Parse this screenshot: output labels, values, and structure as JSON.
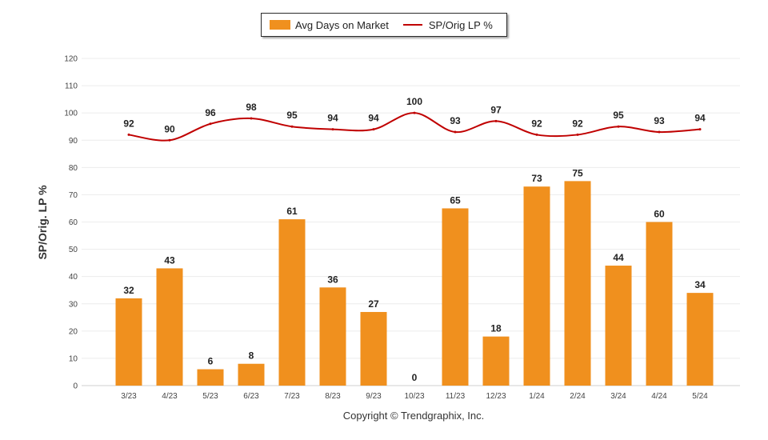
{
  "chart_data": {
    "type": "bar",
    "categories": [
      "3/23",
      "4/23",
      "5/23",
      "6/23",
      "7/23",
      "8/23",
      "9/23",
      "10/23",
      "11/23",
      "12/23",
      "1/24",
      "2/24",
      "3/24",
      "4/24",
      "5/24"
    ],
    "series": [
      {
        "name": "Avg Days on Market",
        "type": "bar",
        "color": "#F0901E",
        "values": [
          32,
          43,
          6,
          8,
          61,
          36,
          27,
          0,
          65,
          18,
          73,
          75,
          44,
          60,
          34
        ]
      },
      {
        "name": "SP/Orig LP %",
        "type": "line",
        "color": "#C00000",
        "values": [
          92,
          90,
          96,
          98,
          95,
          94,
          94,
          100,
          93,
          97,
          92,
          92,
          95,
          93,
          94
        ]
      }
    ],
    "ylabel": "SP/Orig. LP %",
    "xlabel": "",
    "ylim": [
      0,
      120
    ],
    "yticks": [
      0,
      10,
      20,
      30,
      40,
      50,
      60,
      70,
      80,
      90,
      100,
      110,
      120
    ],
    "grid": true,
    "legend": "top-center"
  },
  "legend": {
    "bar_label": "Avg Days on Market",
    "line_label": "SP/Orig LP %"
  },
  "footer": {
    "copyright": "Copyright © Trendgraphix, Inc."
  }
}
